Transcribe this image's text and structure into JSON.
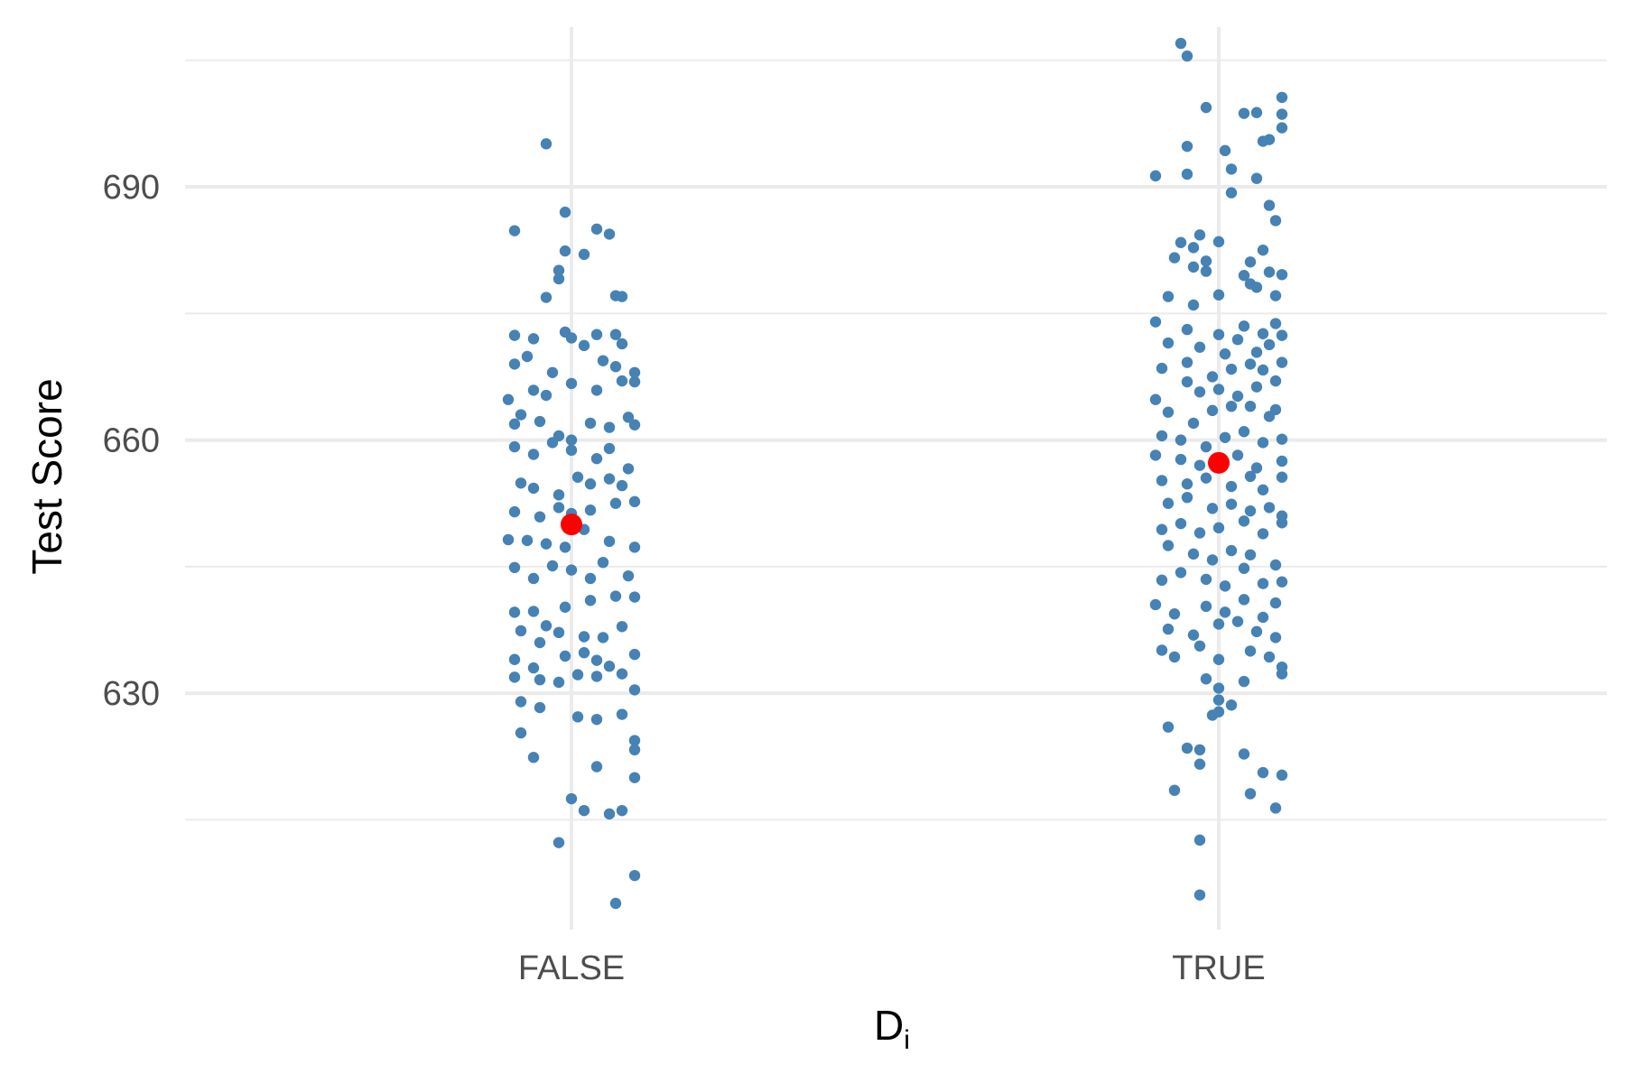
{
  "chart_data": {
    "type": "scatter",
    "title": "",
    "xlabel": "D",
    "xlabel_subscript": "i",
    "ylabel": "Test Score",
    "categories": [
      "FALSE",
      "TRUE"
    ],
    "ylim": [
      602,
      710
    ],
    "yticks_major": [
      630,
      660,
      690
    ],
    "yticks_major_labels": [
      "630",
      "660",
      "690"
    ],
    "yticks_minor": [
      615,
      645,
      675,
      705
    ],
    "grid": true,
    "legend": "none",
    "point_color": "#4682b4",
    "mean_color": "#ff0000",
    "means": [
      650.0,
      657.3
    ],
    "series": [
      {
        "category": "FALSE",
        "points": [
          [
            -0.04,
            695.1
          ],
          [
            -0.09,
            684.8
          ],
          [
            -0.01,
            687.0
          ],
          [
            -0.01,
            682.4
          ],
          [
            0.02,
            682.0
          ],
          [
            0.04,
            685.0
          ],
          [
            0.06,
            684.4
          ],
          [
            -0.02,
            680.1
          ],
          [
            -0.02,
            679.1
          ],
          [
            0.07,
            677.1
          ],
          [
            0.08,
            677.0
          ],
          [
            -0.04,
            676.9
          ],
          [
            -0.09,
            672.4
          ],
          [
            -0.06,
            672.0
          ],
          [
            -0.01,
            672.8
          ],
          [
            0.0,
            672.1
          ],
          [
            0.02,
            671.2
          ],
          [
            0.04,
            672.5
          ],
          [
            0.07,
            672.5
          ],
          [
            0.08,
            671.4
          ],
          [
            -0.09,
            669.0
          ],
          [
            -0.07,
            669.9
          ],
          [
            -0.03,
            668.0
          ],
          [
            0.05,
            669.4
          ],
          [
            0.07,
            668.7
          ],
          [
            0.1,
            668.0
          ],
          [
            0.1,
            666.9
          ],
          [
            -0.1,
            664.8
          ],
          [
            -0.08,
            663.0
          ],
          [
            -0.06,
            665.9
          ],
          [
            -0.04,
            665.3
          ],
          [
            0.0,
            666.7
          ],
          [
            0.04,
            665.9
          ],
          [
            0.08,
            667.0
          ],
          [
            -0.09,
            661.9
          ],
          [
            -0.05,
            662.2
          ],
          [
            -0.02,
            660.5
          ],
          [
            0.0,
            660.0
          ],
          [
            0.03,
            662.0
          ],
          [
            0.06,
            661.5
          ],
          [
            0.09,
            662.7
          ],
          [
            0.1,
            661.8
          ],
          [
            -0.09,
            659.2
          ],
          [
            -0.06,
            658.3
          ],
          [
            -0.03,
            659.7
          ],
          [
            0.0,
            658.8
          ],
          [
            0.04,
            657.8
          ],
          [
            0.06,
            659.0
          ],
          [
            0.09,
            656.6
          ],
          [
            -0.08,
            654.9
          ],
          [
            -0.06,
            654.3
          ],
          [
            -0.02,
            653.5
          ],
          [
            0.01,
            655.6
          ],
          [
            0.03,
            654.8
          ],
          [
            0.06,
            655.4
          ],
          [
            0.08,
            654.6
          ],
          [
            -0.09,
            651.5
          ],
          [
            -0.05,
            650.9
          ],
          [
            -0.02,
            652.0
          ],
          [
            0.0,
            651.3
          ],
          [
            0.03,
            651.7
          ],
          [
            0.07,
            652.5
          ],
          [
            0.1,
            652.7
          ],
          [
            -0.1,
            648.2
          ],
          [
            -0.07,
            648.1
          ],
          [
            -0.04,
            647.7
          ],
          [
            -0.01,
            647.3
          ],
          [
            0.02,
            649.4
          ],
          [
            0.06,
            648.0
          ],
          [
            0.1,
            647.3
          ],
          [
            -0.09,
            644.9
          ],
          [
            -0.06,
            643.6
          ],
          [
            -0.03,
            645.1
          ],
          [
            0.0,
            644.6
          ],
          [
            0.03,
            643.6
          ],
          [
            0.05,
            645.5
          ],
          [
            0.09,
            643.9
          ],
          [
            -0.09,
            639.6
          ],
          [
            -0.06,
            639.7
          ],
          [
            -0.04,
            638.0
          ],
          [
            -0.01,
            640.2
          ],
          [
            0.03,
            641.0
          ],
          [
            0.07,
            641.5
          ],
          [
            0.1,
            641.4
          ],
          [
            -0.08,
            637.4
          ],
          [
            -0.05,
            636.0
          ],
          [
            -0.02,
            637.2
          ],
          [
            0.02,
            636.7
          ],
          [
            0.05,
            636.6
          ],
          [
            0.08,
            637.9
          ],
          [
            -0.09,
            634.0
          ],
          [
            -0.06,
            633.0
          ],
          [
            -0.01,
            634.4
          ],
          [
            0.02,
            634.8
          ],
          [
            0.04,
            633.9
          ],
          [
            0.06,
            633.2
          ],
          [
            0.1,
            634.6
          ],
          [
            -0.09,
            631.9
          ],
          [
            -0.05,
            631.6
          ],
          [
            -0.02,
            631.3
          ],
          [
            0.01,
            632.2
          ],
          [
            0.04,
            632.0
          ],
          [
            0.08,
            632.3
          ],
          [
            0.1,
            630.4
          ],
          [
            -0.08,
            629.0
          ],
          [
            -0.05,
            628.3
          ],
          [
            0.01,
            627.2
          ],
          [
            0.04,
            626.9
          ],
          [
            0.08,
            627.5
          ],
          [
            -0.08,
            625.3
          ],
          [
            -0.06,
            622.4
          ],
          [
            0.04,
            621.3
          ],
          [
            0.1,
            624.4
          ],
          [
            0.1,
            623.3
          ],
          [
            0.1,
            620.0
          ],
          [
            0.0,
            617.5
          ],
          [
            0.02,
            616.1
          ],
          [
            0.06,
            615.7
          ],
          [
            0.08,
            616.1
          ],
          [
            -0.02,
            612.3
          ],
          [
            0.1,
            608.4
          ],
          [
            0.07,
            605.1
          ]
        ]
      },
      {
        "category": "TRUE",
        "points": [
          [
            -0.06,
            707.0
          ],
          [
            -0.05,
            705.5
          ],
          [
            0.1,
            700.6
          ],
          [
            -0.02,
            699.4
          ],
          [
            0.04,
            698.7
          ],
          [
            0.06,
            698.8
          ],
          [
            0.1,
            698.6
          ],
          [
            0.1,
            697.0
          ],
          [
            -0.05,
            694.8
          ],
          [
            0.01,
            694.3
          ],
          [
            0.08,
            695.6
          ],
          [
            0.07,
            695.4
          ],
          [
            -0.1,
            691.3
          ],
          [
            -0.05,
            691.5
          ],
          [
            0.02,
            692.1
          ],
          [
            0.06,
            691.0
          ],
          [
            0.02,
            689.3
          ],
          [
            0.08,
            687.8
          ],
          [
            0.09,
            686.0
          ],
          [
            -0.06,
            683.4
          ],
          [
            -0.04,
            682.8
          ],
          [
            -0.03,
            684.3
          ],
          [
            0.0,
            683.5
          ],
          [
            -0.07,
            681.6
          ],
          [
            -0.02,
            681.2
          ],
          [
            0.05,
            681.1
          ],
          [
            0.07,
            682.5
          ],
          [
            -0.04,
            680.5
          ],
          [
            -0.02,
            680.0
          ],
          [
            0.04,
            679.5
          ],
          [
            0.05,
            678.5
          ],
          [
            0.08,
            679.9
          ],
          [
            0.1,
            679.6
          ],
          [
            -0.08,
            677.0
          ],
          [
            -0.04,
            676.0
          ],
          [
            0.0,
            677.2
          ],
          [
            0.06,
            678.1
          ],
          [
            0.09,
            677.1
          ],
          [
            -0.1,
            674.0
          ],
          [
            -0.05,
            673.1
          ],
          [
            0.0,
            672.5
          ],
          [
            0.04,
            673.5
          ],
          [
            0.07,
            672.6
          ],
          [
            0.09,
            673.8
          ],
          [
            -0.08,
            671.5
          ],
          [
            -0.03,
            671.0
          ],
          [
            0.01,
            670.2
          ],
          [
            0.03,
            671.9
          ],
          [
            0.06,
            670.4
          ],
          [
            0.08,
            671.3
          ],
          [
            0.1,
            672.4
          ],
          [
            -0.09,
            668.5
          ],
          [
            -0.05,
            669.2
          ],
          [
            -0.01,
            667.5
          ],
          [
            0.02,
            668.4
          ],
          [
            0.05,
            669.0
          ],
          [
            0.07,
            668.3
          ],
          [
            0.1,
            669.2
          ],
          [
            -0.1,
            664.8
          ],
          [
            -0.05,
            666.9
          ],
          [
            -0.03,
            665.7
          ],
          [
            0.0,
            666.0
          ],
          [
            0.03,
            665.2
          ],
          [
            0.06,
            666.3
          ],
          [
            0.09,
            667.0
          ],
          [
            -0.08,
            663.3
          ],
          [
            -0.04,
            662.0
          ],
          [
            -0.01,
            663.5
          ],
          [
            0.02,
            664.0
          ],
          [
            0.05,
            664.0
          ],
          [
            0.08,
            662.8
          ],
          [
            0.09,
            663.6
          ],
          [
            -0.09,
            660.5
          ],
          [
            -0.06,
            660.0
          ],
          [
            -0.02,
            659.2
          ],
          [
            0.01,
            660.3
          ],
          [
            0.04,
            661.0
          ],
          [
            0.07,
            659.7
          ],
          [
            0.1,
            660.1
          ],
          [
            -0.1,
            658.2
          ],
          [
            -0.06,
            657.7
          ],
          [
            -0.03,
            657.0
          ],
          [
            0.03,
            658.2
          ],
          [
            0.06,
            656.7
          ],
          [
            0.1,
            657.5
          ],
          [
            -0.09,
            655.2
          ],
          [
            -0.05,
            654.8
          ],
          [
            -0.02,
            655.5
          ],
          [
            0.02,
            654.5
          ],
          [
            0.05,
            655.7
          ],
          [
            0.07,
            654.1
          ],
          [
            0.1,
            655.6
          ],
          [
            -0.08,
            652.5
          ],
          [
            -0.05,
            653.2
          ],
          [
            -0.01,
            651.9
          ],
          [
            0.02,
            652.4
          ],
          [
            0.05,
            651.6
          ],
          [
            0.08,
            652.0
          ],
          [
            0.1,
            651.0
          ],
          [
            -0.09,
            649.4
          ],
          [
            -0.06,
            650.1
          ],
          [
            -0.03,
            649.0
          ],
          [
            0.0,
            649.6
          ],
          [
            0.04,
            650.4
          ],
          [
            0.07,
            648.9
          ],
          [
            0.1,
            650.2
          ],
          [
            -0.08,
            647.5
          ],
          [
            -0.04,
            646.5
          ],
          [
            -0.01,
            645.8
          ],
          [
            0.02,
            646.9
          ],
          [
            0.05,
            646.4
          ],
          [
            0.09,
            645.2
          ],
          [
            -0.09,
            643.4
          ],
          [
            -0.06,
            644.3
          ],
          [
            -0.02,
            643.5
          ],
          [
            0.01,
            642.7
          ],
          [
            0.04,
            644.8
          ],
          [
            0.07,
            643.0
          ],
          [
            0.1,
            643.2
          ],
          [
            -0.1,
            640.5
          ],
          [
            -0.07,
            639.4
          ],
          [
            -0.02,
            640.3
          ],
          [
            0.01,
            639.6
          ],
          [
            0.04,
            641.1
          ],
          [
            0.07,
            639.0
          ],
          [
            0.09,
            640.7
          ],
          [
            -0.08,
            637.6
          ],
          [
            -0.04,
            636.9
          ],
          [
            0.0,
            638.2
          ],
          [
            0.03,
            638.5
          ],
          [
            0.06,
            637.3
          ],
          [
            0.09,
            636.6
          ],
          [
            -0.09,
            635.1
          ],
          [
            -0.07,
            634.3
          ],
          [
            -0.03,
            635.6
          ],
          [
            0.0,
            634.0
          ],
          [
            0.05,
            635.0
          ],
          [
            0.08,
            634.3
          ],
          [
            0.1,
            633.1
          ],
          [
            -0.02,
            631.7
          ],
          [
            0.0,
            630.6
          ],
          [
            0.04,
            631.4
          ],
          [
            0.1,
            632.3
          ],
          [
            0.0,
            629.2
          ],
          [
            -0.01,
            627.4
          ],
          [
            0.02,
            628.6
          ],
          [
            0.0,
            627.8
          ],
          [
            -0.08,
            626.0
          ],
          [
            -0.03,
            623.3
          ],
          [
            -0.05,
            623.5
          ],
          [
            0.04,
            622.8
          ],
          [
            -0.03,
            621.6
          ],
          [
            0.07,
            620.6
          ],
          [
            0.1,
            620.3
          ],
          [
            -0.07,
            618.5
          ],
          [
            0.05,
            618.1
          ],
          [
            0.09,
            616.4
          ],
          [
            -0.03,
            612.6
          ],
          [
            -0.03,
            606.1
          ]
        ]
      }
    ]
  }
}
